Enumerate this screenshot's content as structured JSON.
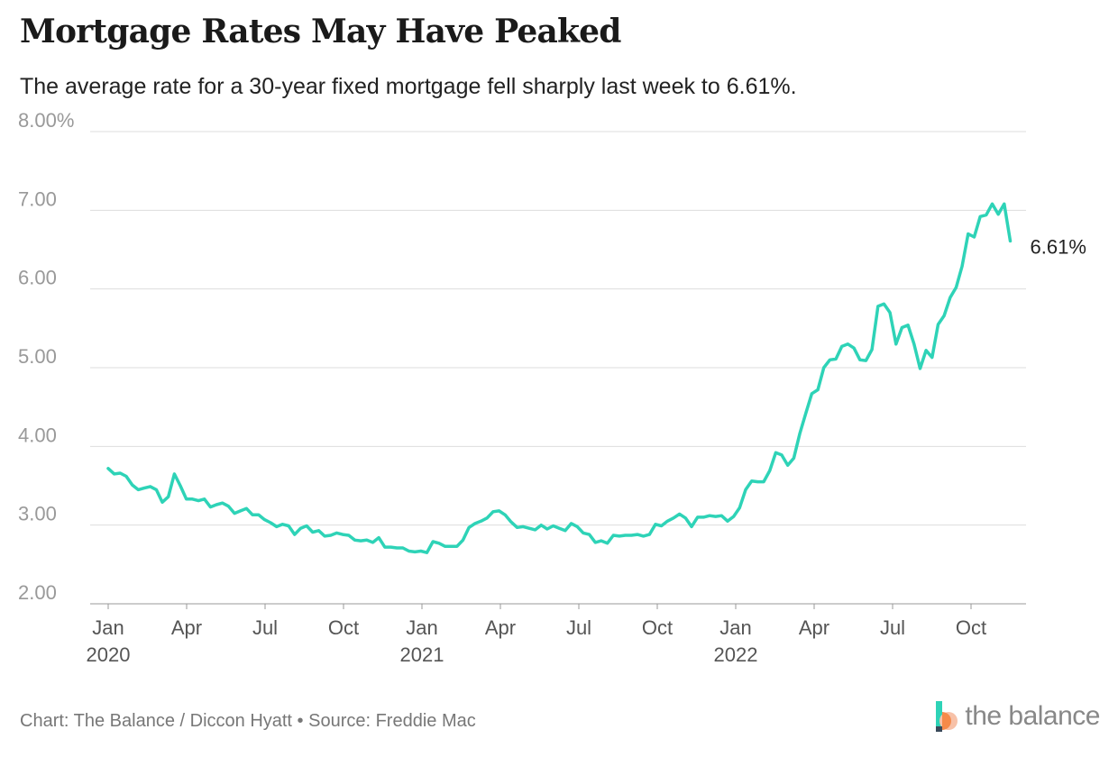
{
  "title": "Mortgage Rates May Have Peaked",
  "subtitle": "The average rate for a 30-year fixed mortgage fell sharply last week to 6.61%.",
  "source": "Chart: The Balance / Diccon Hyatt • Source: Freddie Mac",
  "brand": "the balance",
  "colors": {
    "line": "#2ED3B7",
    "grid": "#dddddd",
    "axis_text": "#999999",
    "label_text": "#222222"
  },
  "chart_data": {
    "type": "line",
    "title": "Mortgage Rates May Have Peaked",
    "ylim": [
      2.0,
      8.0
    ],
    "y_ticks": [
      "8.00%",
      "7.00",
      "6.00",
      "5.00",
      "4.00",
      "3.00",
      "2.00"
    ],
    "y_tick_values": [
      8,
      7,
      6,
      5,
      4,
      3,
      2
    ],
    "x_ticks": [
      {
        "label": "Jan",
        "year": "2020",
        "month": 0
      },
      {
        "label": "Apr",
        "year": "",
        "month": 3
      },
      {
        "label": "Jul",
        "year": "",
        "month": 6
      },
      {
        "label": "Oct",
        "year": "",
        "month": 9
      },
      {
        "label": "Jan",
        "year": "2021",
        "month": 12
      },
      {
        "label": "Apr",
        "year": "",
        "month": 15
      },
      {
        "label": "Jul",
        "year": "",
        "month": 18
      },
      {
        "label": "Oct",
        "year": "",
        "month": 21
      },
      {
        "label": "Jan",
        "year": "2022",
        "month": 24
      },
      {
        "label": "Apr",
        "year": "",
        "month": 27
      },
      {
        "label": "Jul",
        "year": "",
        "month": 30
      },
      {
        "label": "Oct",
        "year": "",
        "month": 33
      }
    ],
    "end_label": "6.61%",
    "grid": true,
    "series": [
      {
        "values": [
          [
            0.0,
            3.72
          ],
          [
            0.23,
            3.65
          ],
          [
            0.46,
            3.66
          ],
          [
            0.69,
            3.62
          ],
          [
            0.92,
            3.51
          ],
          [
            1.15,
            3.45
          ],
          [
            1.38,
            3.47
          ],
          [
            1.61,
            3.49
          ],
          [
            1.84,
            3.45
          ],
          [
            2.07,
            3.29
          ],
          [
            2.3,
            3.36
          ],
          [
            2.53,
            3.65
          ],
          [
            2.76,
            3.5
          ],
          [
            2.99,
            3.33
          ],
          [
            3.22,
            3.33
          ],
          [
            3.45,
            3.31
          ],
          [
            3.68,
            3.33
          ],
          [
            3.91,
            3.23
          ],
          [
            4.14,
            3.26
          ],
          [
            4.37,
            3.28
          ],
          [
            4.6,
            3.24
          ],
          [
            4.83,
            3.15
          ],
          [
            5.06,
            3.18
          ],
          [
            5.29,
            3.21
          ],
          [
            5.52,
            3.13
          ],
          [
            5.75,
            3.13
          ],
          [
            5.98,
            3.07
          ],
          [
            6.21,
            3.03
          ],
          [
            6.44,
            2.98
          ],
          [
            6.67,
            3.01
          ],
          [
            6.9,
            2.99
          ],
          [
            7.13,
            2.88
          ],
          [
            7.36,
            2.96
          ],
          [
            7.59,
            2.99
          ],
          [
            7.82,
            2.91
          ],
          [
            8.05,
            2.93
          ],
          [
            8.28,
            2.86
          ],
          [
            8.51,
            2.87
          ],
          [
            8.74,
            2.9
          ],
          [
            8.97,
            2.88
          ],
          [
            9.2,
            2.87
          ],
          [
            9.43,
            2.81
          ],
          [
            9.66,
            2.8
          ],
          [
            9.89,
            2.81
          ],
          [
            10.12,
            2.78
          ],
          [
            10.35,
            2.84
          ],
          [
            10.58,
            2.72
          ],
          [
            10.81,
            2.72
          ],
          [
            11.04,
            2.71
          ],
          [
            11.27,
            2.71
          ],
          [
            11.5,
            2.67
          ],
          [
            11.73,
            2.66
          ],
          [
            11.96,
            2.67
          ],
          [
            12.19,
            2.65
          ],
          [
            12.42,
            2.79
          ],
          [
            12.65,
            2.77
          ],
          [
            12.88,
            2.73
          ],
          [
            13.11,
            2.73
          ],
          [
            13.34,
            2.73
          ],
          [
            13.57,
            2.81
          ],
          [
            13.8,
            2.97
          ],
          [
            14.03,
            3.02
          ],
          [
            14.26,
            3.05
          ],
          [
            14.49,
            3.09
          ],
          [
            14.72,
            3.17
          ],
          [
            14.95,
            3.18
          ],
          [
            15.18,
            3.13
          ],
          [
            15.41,
            3.04
          ],
          [
            15.64,
            2.97
          ],
          [
            15.87,
            2.98
          ],
          [
            16.1,
            2.96
          ],
          [
            16.33,
            2.94
          ],
          [
            16.56,
            3.0
          ],
          [
            16.79,
            2.95
          ],
          [
            17.02,
            2.99
          ],
          [
            17.25,
            2.96
          ],
          [
            17.48,
            2.93
          ],
          [
            17.71,
            3.02
          ],
          [
            17.94,
            2.98
          ],
          [
            18.17,
            2.9
          ],
          [
            18.4,
            2.88
          ],
          [
            18.63,
            2.78
          ],
          [
            18.86,
            2.8
          ],
          [
            19.09,
            2.77
          ],
          [
            19.32,
            2.87
          ],
          [
            19.55,
            2.86
          ],
          [
            19.78,
            2.87
          ],
          [
            20.01,
            2.87
          ],
          [
            20.24,
            2.88
          ],
          [
            20.47,
            2.86
          ],
          [
            20.7,
            2.88
          ],
          [
            20.93,
            3.01
          ],
          [
            21.16,
            2.99
          ],
          [
            21.39,
            3.05
          ],
          [
            21.62,
            3.09
          ],
          [
            21.85,
            3.14
          ],
          [
            22.08,
            3.09
          ],
          [
            22.31,
            2.98
          ],
          [
            22.54,
            3.1
          ],
          [
            22.77,
            3.1
          ],
          [
            23.0,
            3.12
          ],
          [
            23.23,
            3.11
          ],
          [
            23.46,
            3.12
          ],
          [
            23.69,
            3.05
          ],
          [
            23.92,
            3.11
          ],
          [
            24.15,
            3.22
          ],
          [
            24.38,
            3.45
          ],
          [
            24.61,
            3.56
          ],
          [
            24.84,
            3.55
          ],
          [
            25.07,
            3.55
          ],
          [
            25.3,
            3.69
          ],
          [
            25.53,
            3.92
          ],
          [
            25.76,
            3.89
          ],
          [
            25.99,
            3.76
          ],
          [
            26.22,
            3.85
          ],
          [
            26.45,
            4.16
          ],
          [
            26.68,
            4.42
          ],
          [
            26.91,
            4.67
          ],
          [
            27.14,
            4.72
          ],
          [
            27.37,
            5.0
          ],
          [
            27.6,
            5.1
          ],
          [
            27.83,
            5.11
          ],
          [
            28.06,
            5.27
          ],
          [
            28.29,
            5.3
          ],
          [
            28.52,
            5.25
          ],
          [
            28.75,
            5.1
          ],
          [
            28.98,
            5.09
          ],
          [
            29.21,
            5.23
          ],
          [
            29.44,
            5.78
          ],
          [
            29.67,
            5.81
          ],
          [
            29.9,
            5.7
          ],
          [
            30.13,
            5.3
          ],
          [
            30.36,
            5.51
          ],
          [
            30.59,
            5.54
          ],
          [
            30.82,
            5.3
          ],
          [
            31.05,
            4.99
          ],
          [
            31.28,
            5.22
          ],
          [
            31.51,
            5.13
          ],
          [
            31.74,
            5.55
          ],
          [
            31.97,
            5.66
          ],
          [
            32.2,
            5.89
          ],
          [
            32.43,
            6.02
          ],
          [
            32.66,
            6.29
          ],
          [
            32.89,
            6.7
          ],
          [
            33.12,
            6.66
          ],
          [
            33.35,
            6.92
          ],
          [
            33.58,
            6.94
          ],
          [
            33.81,
            7.08
          ],
          [
            34.04,
            6.95
          ],
          [
            34.27,
            7.08
          ],
          [
            34.5,
            6.61
          ]
        ]
      }
    ]
  }
}
